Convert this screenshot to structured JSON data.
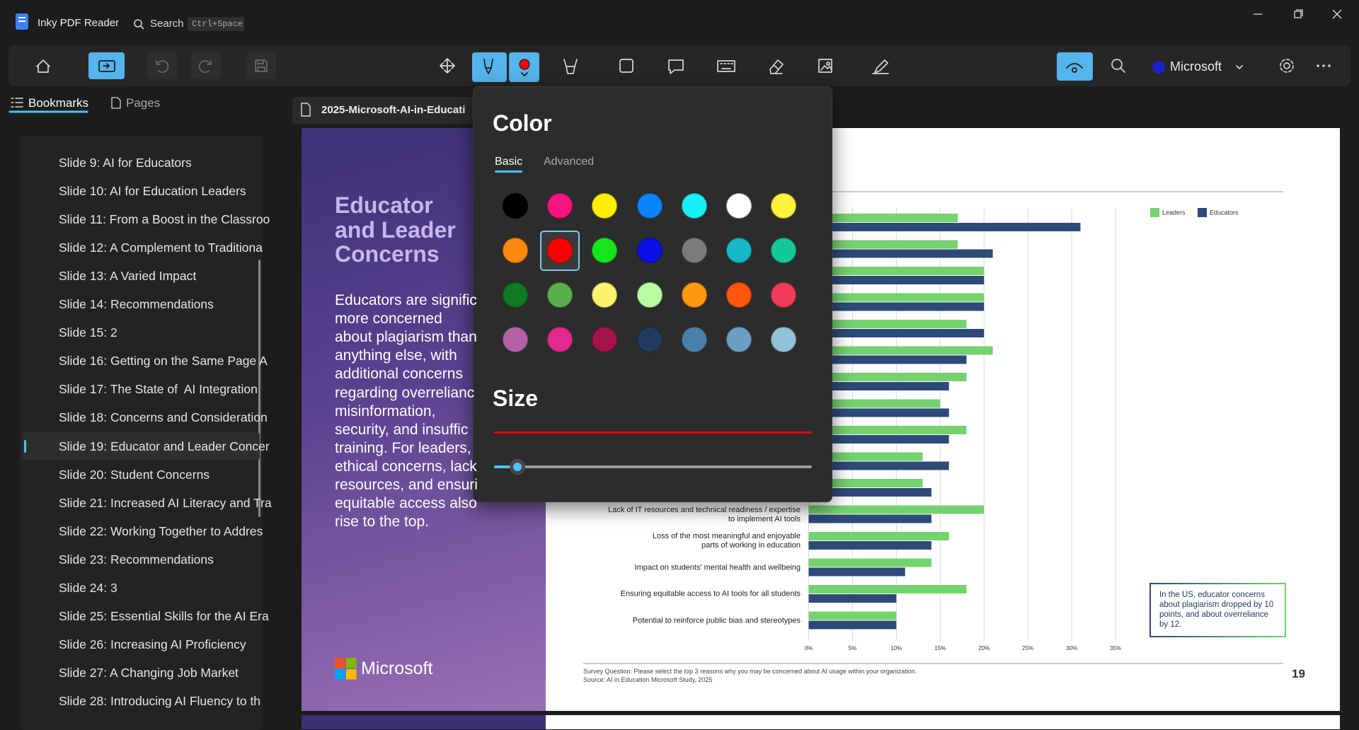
{
  "app": {
    "title": "Inky PDF Reader",
    "search": "Search",
    "search_shortcut": "Ctrl+Space"
  },
  "toolbar": {
    "account": "Microsoft"
  },
  "sidebar": {
    "tabs": [
      "Bookmarks",
      "Pages"
    ],
    "active_tab": 0,
    "bookmarks": [
      "Slide 9: AI for Educators",
      "Slide 10: AI for Education Leaders",
      "Slide 11: From a Boost in the Classroo",
      "Slide 12: A Complement to Traditiona",
      "Slide 13: A Varied Impact",
      "Slide 14: Recommendations",
      "Slide 15: 2",
      "Slide 16: Getting on the Same Page A",
      "Slide 17: The State of  AI Integration",
      "Slide 18: Concerns and Consideration",
      "Slide 19: Educator and Leader Concer",
      "Slide 20: Student Concerns",
      "Slide 21: Increased AI Literacy and Tra",
      "Slide 22: Working Together to Addres",
      "Slide 23: Recommendations",
      "Slide 24: 3",
      "Slide 25: Essential Skills for the AI Era",
      "Slide 26: Increasing AI Proficiency",
      "Slide 27: A Changing Job Market",
      "Slide 28: Introducing AI Fluency to th"
    ],
    "selected": 10
  },
  "document": {
    "tab": "2025-Microsoft-AI-in-Educati",
    "slide": {
      "heading": [
        "Educator",
        "and Leader",
        "Concerns"
      ],
      "body": [
        "Educators are signific",
        "more concerned",
        "about plagiarism than",
        "anything else, with",
        "additional concerns",
        "regarding overrelianc",
        "misinformation,",
        "security, and insuffic",
        "training. For leaders,",
        "ethical concerns, lack",
        "resources, and ensuri",
        "equitable access also",
        "rise to the top."
      ],
      "logo": "Microsoft",
      "footnotes": [
        "Survey Question: Please select the top 3 reasons why you may be concerned about AI usage within your organization.",
        "Source: AI in Education Microsoft Study, 2025"
      ],
      "page_number": "19"
    }
  },
  "chart_data": {
    "type": "bar",
    "orientation": "horizontal",
    "categories": [
      null,
      null,
      null,
      null,
      null,
      null,
      null,
      null,
      null,
      null,
      null,
      "Lack of IT resources and technical readiness / expertise\nto implement AI tools",
      "Loss of the most meaningful and enjoyable\nparts of working in education",
      "Impact on students' mental health and wellbeing",
      "Ensuring equitable access to AI tools for all students",
      "Potential to reinforce public bias and stereotypes"
    ],
    "series": [
      {
        "name": "Leaders",
        "color": "#74d26f",
        "values": [
          17,
          17,
          20,
          20,
          18,
          21,
          18,
          15,
          18,
          13,
          13,
          20,
          16,
          14,
          18,
          10
        ]
      },
      {
        "name": "Educators",
        "color": "#2e4a78",
        "values": [
          31,
          21,
          20,
          20,
          20,
          18,
          16,
          16,
          16,
          16,
          14,
          14,
          14,
          11,
          10,
          10
        ]
      }
    ],
    "xlim": [
      0,
      35
    ],
    "xticks": [
      {
        "value": 0,
        "label": "0%"
      },
      {
        "value": 5,
        "label": "5%"
      },
      {
        "value": 10,
        "label": "10%"
      },
      {
        "value": 15,
        "label": "15%"
      },
      {
        "value": 20,
        "label": "20%"
      },
      {
        "value": 25,
        "label": "25%"
      },
      {
        "value": 30,
        "label": "30%"
      },
      {
        "value": 35,
        "label": "35%"
      }
    ],
    "grid": true,
    "annotation": "In the US, educator concerns about plagiarism dropped by 10 points, and about overreliance by 12."
  },
  "popup": {
    "title": "Color",
    "tabs": [
      "Basic",
      "Advanced"
    ],
    "active_tab": 0,
    "swatches": [
      "#000000",
      "#f8157f",
      "#ffee00",
      "#0a84ff",
      "#19f0f5",
      "#ffffff",
      "#fff23a",
      "#ff8a0d",
      "#ff0000",
      "#16e51b",
      "#0a10e6",
      "#7c7c7c",
      "#15b8c4",
      "#13c999",
      "#0f7a21",
      "#58b04c",
      "#fff36b",
      "#b8ffa4",
      "#ff9910",
      "#ff560f",
      "#f23a5a",
      "#b561a8",
      "#e02a8e",
      "#a4144a",
      "#213c5e",
      "#4a7fa8",
      "#6c9fc4",
      "#92c2d8"
    ],
    "selected_swatch": 8,
    "size_label": "Size"
  }
}
